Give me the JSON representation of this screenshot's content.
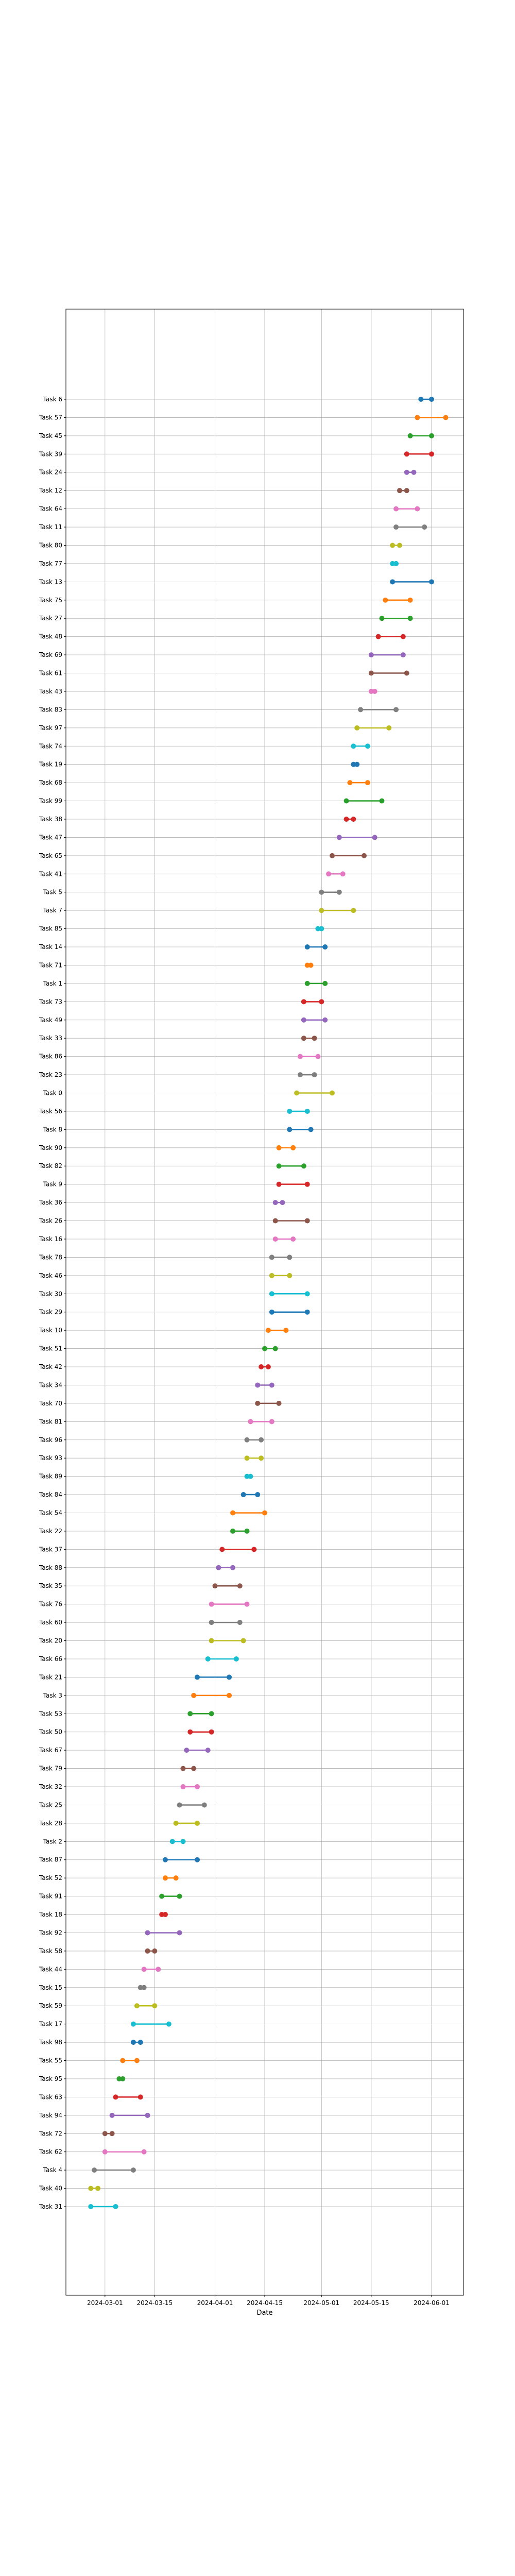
{
  "chart_data": {
    "type": "dumbbell",
    "title": "",
    "xlabel": "Date",
    "ylabel": "",
    "grid": true,
    "legend": "none",
    "x_ticks": [
      "2024-03-01",
      "2024-03-15",
      "2024-04-01",
      "2024-04-15",
      "2024-05-01",
      "2024-05-15",
      "2024-06-01"
    ],
    "xlim": [
      "2024-02-19",
      "2024-06-10"
    ],
    "palette": [
      "#1f77b4",
      "#ff7f0e",
      "#2ca02c",
      "#d62728",
      "#9467bd",
      "#8c564b",
      "#e377c2",
      "#7f7f7f",
      "#bcbd22",
      "#17becf"
    ],
    "tasks": [
      {
        "label": "Task 6",
        "start": "2024-05-29",
        "end": "2024-06-01"
      },
      {
        "label": "Task 57",
        "start": "2024-05-28",
        "end": "2024-06-05"
      },
      {
        "label": "Task 45",
        "start": "2024-05-26",
        "end": "2024-06-01"
      },
      {
        "label": "Task 39",
        "start": "2024-05-25",
        "end": "2024-06-01"
      },
      {
        "label": "Task 24",
        "start": "2024-05-25",
        "end": "2024-05-27"
      },
      {
        "label": "Task 12",
        "start": "2024-05-23",
        "end": "2024-05-25"
      },
      {
        "label": "Task 64",
        "start": "2024-05-22",
        "end": "2024-05-28"
      },
      {
        "label": "Task 11",
        "start": "2024-05-22",
        "end": "2024-05-30"
      },
      {
        "label": "Task 80",
        "start": "2024-05-21",
        "end": "2024-05-23"
      },
      {
        "label": "Task 77",
        "start": "2024-05-21",
        "end": "2024-05-22"
      },
      {
        "label": "Task 13",
        "start": "2024-05-21",
        "end": "2024-06-01"
      },
      {
        "label": "Task 75",
        "start": "2024-05-19",
        "end": "2024-05-26"
      },
      {
        "label": "Task 27",
        "start": "2024-05-18",
        "end": "2024-05-26"
      },
      {
        "label": "Task 48",
        "start": "2024-05-17",
        "end": "2024-05-24"
      },
      {
        "label": "Task 69",
        "start": "2024-05-15",
        "end": "2024-05-24"
      },
      {
        "label": "Task 61",
        "start": "2024-05-15",
        "end": "2024-05-25"
      },
      {
        "label": "Task 43",
        "start": "2024-05-15",
        "end": "2024-05-16"
      },
      {
        "label": "Task 83",
        "start": "2024-05-12",
        "end": "2024-05-22"
      },
      {
        "label": "Task 97",
        "start": "2024-05-11",
        "end": "2024-05-20"
      },
      {
        "label": "Task 74",
        "start": "2024-05-10",
        "end": "2024-05-14"
      },
      {
        "label": "Task 19",
        "start": "2024-05-10",
        "end": "2024-05-11"
      },
      {
        "label": "Task 68",
        "start": "2024-05-09",
        "end": "2024-05-14"
      },
      {
        "label": "Task 99",
        "start": "2024-05-08",
        "end": "2024-05-18"
      },
      {
        "label": "Task 38",
        "start": "2024-05-08",
        "end": "2024-05-10"
      },
      {
        "label": "Task 47",
        "start": "2024-05-06",
        "end": "2024-05-16"
      },
      {
        "label": "Task 65",
        "start": "2024-05-04",
        "end": "2024-05-13"
      },
      {
        "label": "Task 41",
        "start": "2024-05-03",
        "end": "2024-05-07"
      },
      {
        "label": "Task 5",
        "start": "2024-05-01",
        "end": "2024-05-06"
      },
      {
        "label": "Task 7",
        "start": "2024-05-01",
        "end": "2024-05-10"
      },
      {
        "label": "Task 85",
        "start": "2024-04-30",
        "end": "2024-05-01"
      },
      {
        "label": "Task 14",
        "start": "2024-04-27",
        "end": "2024-05-02"
      },
      {
        "label": "Task 71",
        "start": "2024-04-27",
        "end": "2024-04-28"
      },
      {
        "label": "Task 1",
        "start": "2024-04-27",
        "end": "2024-05-02"
      },
      {
        "label": "Task 73",
        "start": "2024-04-26",
        "end": "2024-05-01"
      },
      {
        "label": "Task 49",
        "start": "2024-04-26",
        "end": "2024-05-02"
      },
      {
        "label": "Task 33",
        "start": "2024-04-26",
        "end": "2024-04-29"
      },
      {
        "label": "Task 86",
        "start": "2024-04-25",
        "end": "2024-04-30"
      },
      {
        "label": "Task 23",
        "start": "2024-04-25",
        "end": "2024-04-29"
      },
      {
        "label": "Task 0",
        "start": "2024-04-24",
        "end": "2024-05-04"
      },
      {
        "label": "Task 56",
        "start": "2024-04-22",
        "end": "2024-04-27"
      },
      {
        "label": "Task 8",
        "start": "2024-04-22",
        "end": "2024-04-28"
      },
      {
        "label": "Task 90",
        "start": "2024-04-19",
        "end": "2024-04-23"
      },
      {
        "label": "Task 82",
        "start": "2024-04-19",
        "end": "2024-04-26"
      },
      {
        "label": "Task 9",
        "start": "2024-04-19",
        "end": "2024-04-27"
      },
      {
        "label": "Task 36",
        "start": "2024-04-18",
        "end": "2024-04-20"
      },
      {
        "label": "Task 26",
        "start": "2024-04-18",
        "end": "2024-04-27"
      },
      {
        "label": "Task 16",
        "start": "2024-04-18",
        "end": "2024-04-23"
      },
      {
        "label": "Task 78",
        "start": "2024-04-17",
        "end": "2024-04-22"
      },
      {
        "label": "Task 46",
        "start": "2024-04-17",
        "end": "2024-04-22"
      },
      {
        "label": "Task 30",
        "start": "2024-04-17",
        "end": "2024-04-27"
      },
      {
        "label": "Task 29",
        "start": "2024-04-17",
        "end": "2024-04-27"
      },
      {
        "label": "Task 10",
        "start": "2024-04-16",
        "end": "2024-04-21"
      },
      {
        "label": "Task 51",
        "start": "2024-04-15",
        "end": "2024-04-18"
      },
      {
        "label": "Task 42",
        "start": "2024-04-14",
        "end": "2024-04-16"
      },
      {
        "label": "Task 34",
        "start": "2024-04-13",
        "end": "2024-04-17"
      },
      {
        "label": "Task 70",
        "start": "2024-04-13",
        "end": "2024-04-19"
      },
      {
        "label": "Task 81",
        "start": "2024-04-11",
        "end": "2024-04-17"
      },
      {
        "label": "Task 96",
        "start": "2024-04-10",
        "end": "2024-04-14"
      },
      {
        "label": "Task 93",
        "start": "2024-04-10",
        "end": "2024-04-14"
      },
      {
        "label": "Task 89",
        "start": "2024-04-10",
        "end": "2024-04-11"
      },
      {
        "label": "Task 84",
        "start": "2024-04-09",
        "end": "2024-04-13"
      },
      {
        "label": "Task 54",
        "start": "2024-04-06",
        "end": "2024-04-15"
      },
      {
        "label": "Task 22",
        "start": "2024-04-06",
        "end": "2024-04-10"
      },
      {
        "label": "Task 37",
        "start": "2024-04-03",
        "end": "2024-04-12"
      },
      {
        "label": "Task 88",
        "start": "2024-04-02",
        "end": "2024-04-06"
      },
      {
        "label": "Task 35",
        "start": "2024-04-01",
        "end": "2024-04-08"
      },
      {
        "label": "Task 76",
        "start": "2024-03-31",
        "end": "2024-04-10"
      },
      {
        "label": "Task 60",
        "start": "2024-03-31",
        "end": "2024-04-08"
      },
      {
        "label": "Task 20",
        "start": "2024-03-31",
        "end": "2024-04-09"
      },
      {
        "label": "Task 66",
        "start": "2024-03-30",
        "end": "2024-04-07"
      },
      {
        "label": "Task 21",
        "start": "2024-03-27",
        "end": "2024-04-05"
      },
      {
        "label": "Task 3",
        "start": "2024-03-26",
        "end": "2024-04-05"
      },
      {
        "label": "Task 53",
        "start": "2024-03-25",
        "end": "2024-03-31"
      },
      {
        "label": "Task 50",
        "start": "2024-03-25",
        "end": "2024-03-31"
      },
      {
        "label": "Task 67",
        "start": "2024-03-24",
        "end": "2024-03-30"
      },
      {
        "label": "Task 79",
        "start": "2024-03-23",
        "end": "2024-03-26"
      },
      {
        "label": "Task 32",
        "start": "2024-03-23",
        "end": "2024-03-27"
      },
      {
        "label": "Task 25",
        "start": "2024-03-22",
        "end": "2024-03-29"
      },
      {
        "label": "Task 28",
        "start": "2024-03-21",
        "end": "2024-03-27"
      },
      {
        "label": "Task 2",
        "start": "2024-03-20",
        "end": "2024-03-23"
      },
      {
        "label": "Task 87",
        "start": "2024-03-18",
        "end": "2024-03-27"
      },
      {
        "label": "Task 52",
        "start": "2024-03-18",
        "end": "2024-03-21"
      },
      {
        "label": "Task 91",
        "start": "2024-03-17",
        "end": "2024-03-22"
      },
      {
        "label": "Task 18",
        "start": "2024-03-17",
        "end": "2024-03-18"
      },
      {
        "label": "Task 92",
        "start": "2024-03-13",
        "end": "2024-03-22"
      },
      {
        "label": "Task 58",
        "start": "2024-03-13",
        "end": "2024-03-15"
      },
      {
        "label": "Task 44",
        "start": "2024-03-12",
        "end": "2024-03-16"
      },
      {
        "label": "Task 15",
        "start": "2024-03-11",
        "end": "2024-03-12"
      },
      {
        "label": "Task 59",
        "start": "2024-03-10",
        "end": "2024-03-15"
      },
      {
        "label": "Task 17",
        "start": "2024-03-09",
        "end": "2024-03-19"
      },
      {
        "label": "Task 98",
        "start": "2024-03-09",
        "end": "2024-03-11"
      },
      {
        "label": "Task 55",
        "start": "2024-03-06",
        "end": "2024-03-10"
      },
      {
        "label": "Task 95",
        "start": "2024-03-05",
        "end": "2024-03-06"
      },
      {
        "label": "Task 63",
        "start": "2024-03-04",
        "end": "2024-03-11"
      },
      {
        "label": "Task 94",
        "start": "2024-03-03",
        "end": "2024-03-13"
      },
      {
        "label": "Task 72",
        "start": "2024-03-01",
        "end": "2024-03-03"
      },
      {
        "label": "Task 62",
        "start": "2024-03-01",
        "end": "2024-03-12"
      },
      {
        "label": "Task 4",
        "start": "2024-02-27",
        "end": "2024-03-09"
      },
      {
        "label": "Task 40",
        "start": "2024-02-26",
        "end": "2024-02-28"
      },
      {
        "label": "Task 31",
        "start": "2024-02-26",
        "end": "2024-03-04"
      }
    ]
  }
}
